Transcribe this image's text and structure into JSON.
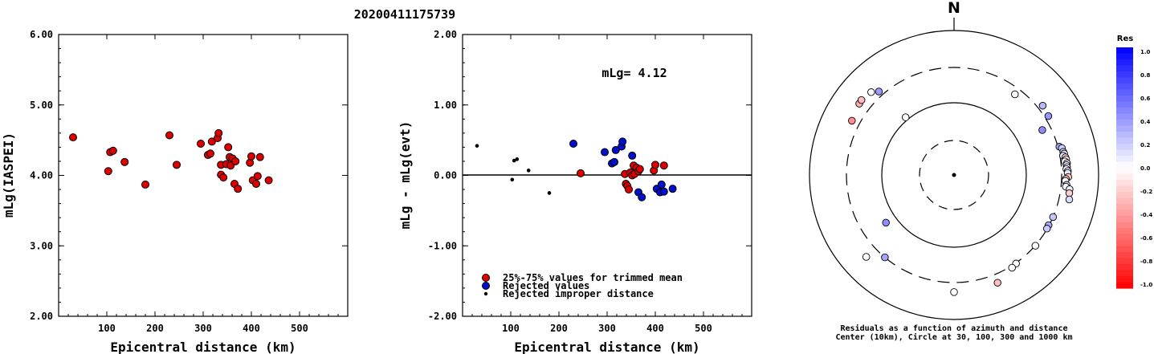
{
  "event_id": "20200411175739",
  "chart_data": [
    {
      "type": "scatter",
      "xlabel": "Epicentral distance (km)",
      "ylabel": "mLg(IASPEI)",
      "xlim": [
        0,
        600
      ],
      "ylim": [
        2.0,
        6.0
      ],
      "xticks": [
        "100",
        "200",
        "300",
        "400",
        "500"
      ],
      "yticks": [
        "2.00",
        "3.00",
        "4.00",
        "5.00",
        "6.00"
      ],
      "points": [
        [
          30,
          4.54
        ],
        [
          103,
          4.06
        ],
        [
          107,
          4.33
        ],
        [
          113,
          4.35
        ],
        [
          137,
          4.19
        ],
        [
          180,
          3.87
        ],
        [
          230,
          4.57
        ],
        [
          245,
          4.15
        ],
        [
          295,
          4.45
        ],
        [
          310,
          4.29
        ],
        [
          315,
          4.31
        ],
        [
          318,
          4.48
        ],
        [
          330,
          4.53
        ],
        [
          332,
          4.6
        ],
        [
          337,
          4.15
        ],
        [
          337,
          4.01
        ],
        [
          342,
          3.97
        ],
        [
          348,
          4.16
        ],
        [
          352,
          4.4
        ],
        [
          355,
          4.26
        ],
        [
          357,
          4.14
        ],
        [
          361,
          4.24
        ],
        [
          365,
          3.88
        ],
        [
          367,
          4.2
        ],
        [
          372,
          3.81
        ],
        [
          397,
          4.18
        ],
        [
          400,
          4.27
        ],
        [
          403,
          3.93
        ],
        [
          410,
          3.88
        ],
        [
          413,
          3.99
        ],
        [
          418,
          4.26
        ],
        [
          436,
          3.93
        ]
      ]
    },
    {
      "type": "scatter",
      "xlabel": "Epicentral distance (km)",
      "ylabel": "mLg - mLg(evt)",
      "xlim": [
        0,
        600
      ],
      "ylim": [
        -2.0,
        2.0
      ],
      "xticks": [
        "100",
        "200",
        "300",
        "400",
        "500"
      ],
      "yticks": [
        "-2.00",
        "-1.00",
        "0.00",
        "1.00",
        "2.00"
      ],
      "annotation": "mLg= 4.12",
      "legend": [
        "25%-75% values for trimmed mean",
        "Rejected values",
        "Rejected improper distance"
      ],
      "series": [
        {
          "name": "25%-75% values for trimmed mean",
          "color": "#dd0000",
          "points": [
            [
              245,
              0.03
            ],
            [
              337,
              0.02
            ],
            [
              339,
              -0.12
            ],
            [
              342,
              -0.15
            ],
            [
              345,
              -0.2
            ],
            [
              348,
              0.04
            ],
            [
              352,
              0.0
            ],
            [
              355,
              0.14
            ],
            [
              357,
              0.02
            ],
            [
              361,
              0.11
            ],
            [
              365,
              0.06
            ],
            [
              368,
              0.09
            ],
            [
              397,
              0.07
            ],
            [
              400,
              0.15
            ],
            [
              418,
              0.14
            ]
          ]
        },
        {
          "name": "Rejected values",
          "color": "#0010cc",
          "points": [
            [
              230,
              0.45
            ],
            [
              295,
              0.33
            ],
            [
              310,
              0.17
            ],
            [
              315,
              0.19
            ],
            [
              318,
              0.36
            ],
            [
              330,
              0.41
            ],
            [
              332,
              0.48
            ],
            [
              352,
              0.28
            ],
            [
              365,
              -0.24
            ],
            [
              372,
              -0.31
            ],
            [
              403,
              -0.19
            ],
            [
              410,
              -0.24
            ],
            [
              413,
              -0.13
            ],
            [
              418,
              -0.23
            ],
            [
              436,
              -0.19
            ]
          ]
        },
        {
          "name": "Rejected improper distance",
          "color": "#000000",
          "points": [
            [
              30,
              0.42
            ],
            [
              103,
              -0.06
            ],
            [
              107,
              0.21
            ],
            [
              113,
              0.23
            ],
            [
              137,
              0.07
            ],
            [
              180,
              -0.25
            ]
          ]
        }
      ]
    },
    {
      "type": "polar",
      "north_label": "N",
      "caption_line1": "Residuals as a function of azimuth and distance",
      "caption_line2": "Center (10km), Circle at 30, 100, 300 and 1000 km",
      "colorbar_title": "Res",
      "colorbar_ticks": [
        "1.0",
        "0.8",
        "0.6",
        "0.4",
        "0.2",
        "0.0",
        "-0.2",
        "-0.4",
        "-0.6",
        "-0.8",
        "-1.0"
      ],
      "stations": [
        {
          "az": 37,
          "dist": 245,
          "res": 0.03
        },
        {
          "az": 63,
          "dist": 230,
          "res": 0.45
        },
        {
          "az": 58,
          "dist": 337,
          "res": 0.41
        },
        {
          "az": 52,
          "dist": 352,
          "res": 0.28
        },
        {
          "az": 75,
          "dist": 315,
          "res": 0.36
        },
        {
          "az": 76,
          "dist": 337,
          "res": 0.19
        },
        {
          "az": 78,
          "dist": 342,
          "res": 0.17
        },
        {
          "az": 79,
          "dist": 348,
          "res": 0.12
        },
        {
          "az": 80,
          "dist": 332,
          "res": 0.08
        },
        {
          "az": 81,
          "dist": 355,
          "res": -0.12
        },
        {
          "az": 82,
          "dist": 360,
          "res": -0.15
        },
        {
          "az": 83,
          "dist": 342,
          "res": 0.0
        },
        {
          "az": 84,
          "dist": 365,
          "res": 0.14
        },
        {
          "az": 85,
          "dist": 357,
          "res": 0.02
        },
        {
          "az": 86,
          "dist": 361,
          "res": 0.11
        },
        {
          "az": 87,
          "dist": 352,
          "res": 0.02
        },
        {
          "az": 88,
          "dist": 368,
          "res": 0.06
        },
        {
          "az": 89,
          "dist": 365,
          "res": 0.09
        },
        {
          "az": 91,
          "dist": 372,
          "res": -0.2
        },
        {
          "az": 92,
          "dist": 345,
          "res": -0.24
        },
        {
          "az": 93,
          "dist": 340,
          "res": 0.0
        },
        {
          "az": 95,
          "dist": 357,
          "res": 0.15
        },
        {
          "az": 96,
          "dist": 352,
          "res": 0.04
        },
        {
          "az": 97,
          "dist": 400,
          "res": 0.07
        },
        {
          "az": 99,
          "dist": 403,
          "res": -0.19
        },
        {
          "az": 102,
          "dist": 418,
          "res": 0.14
        },
        {
          "az": 113,
          "dist": 300,
          "res": 0.23
        },
        {
          "az": 118,
          "dist": 295,
          "res": 0.33
        },
        {
          "az": 120,
          "dist": 297,
          "res": 0.21
        },
        {
          "az": 131,
          "dist": 302,
          "res": 0.02
        },
        {
          "az": 145,
          "dist": 305,
          "res": 0.0
        },
        {
          "az": 148,
          "dist": 318,
          "res": 0.0
        },
        {
          "az": 158,
          "dist": 397,
          "res": -0.25
        },
        {
          "az": 180,
          "dist": 410,
          "res": 0.0
        },
        {
          "az": 220,
          "dist": 300,
          "res": 0.35
        },
        {
          "az": 235,
          "dist": 140,
          "res": 0.45
        },
        {
          "az": 227,
          "dist": 450,
          "res": 0.0
        },
        {
          "az": 298,
          "dist": 390,
          "res": -0.44
        },
        {
          "az": 307,
          "dist": 430,
          "res": -0.32
        },
        {
          "az": 309,
          "dist": 437,
          "res": -0.26
        },
        {
          "az": 318,
          "dist": 350,
          "res": 0.4
        },
        {
          "az": 320,
          "dist": 110,
          "res": 0.0
        },
        {
          "az": 315,
          "dist": 410,
          "res": 0.0
        }
      ]
    }
  ]
}
